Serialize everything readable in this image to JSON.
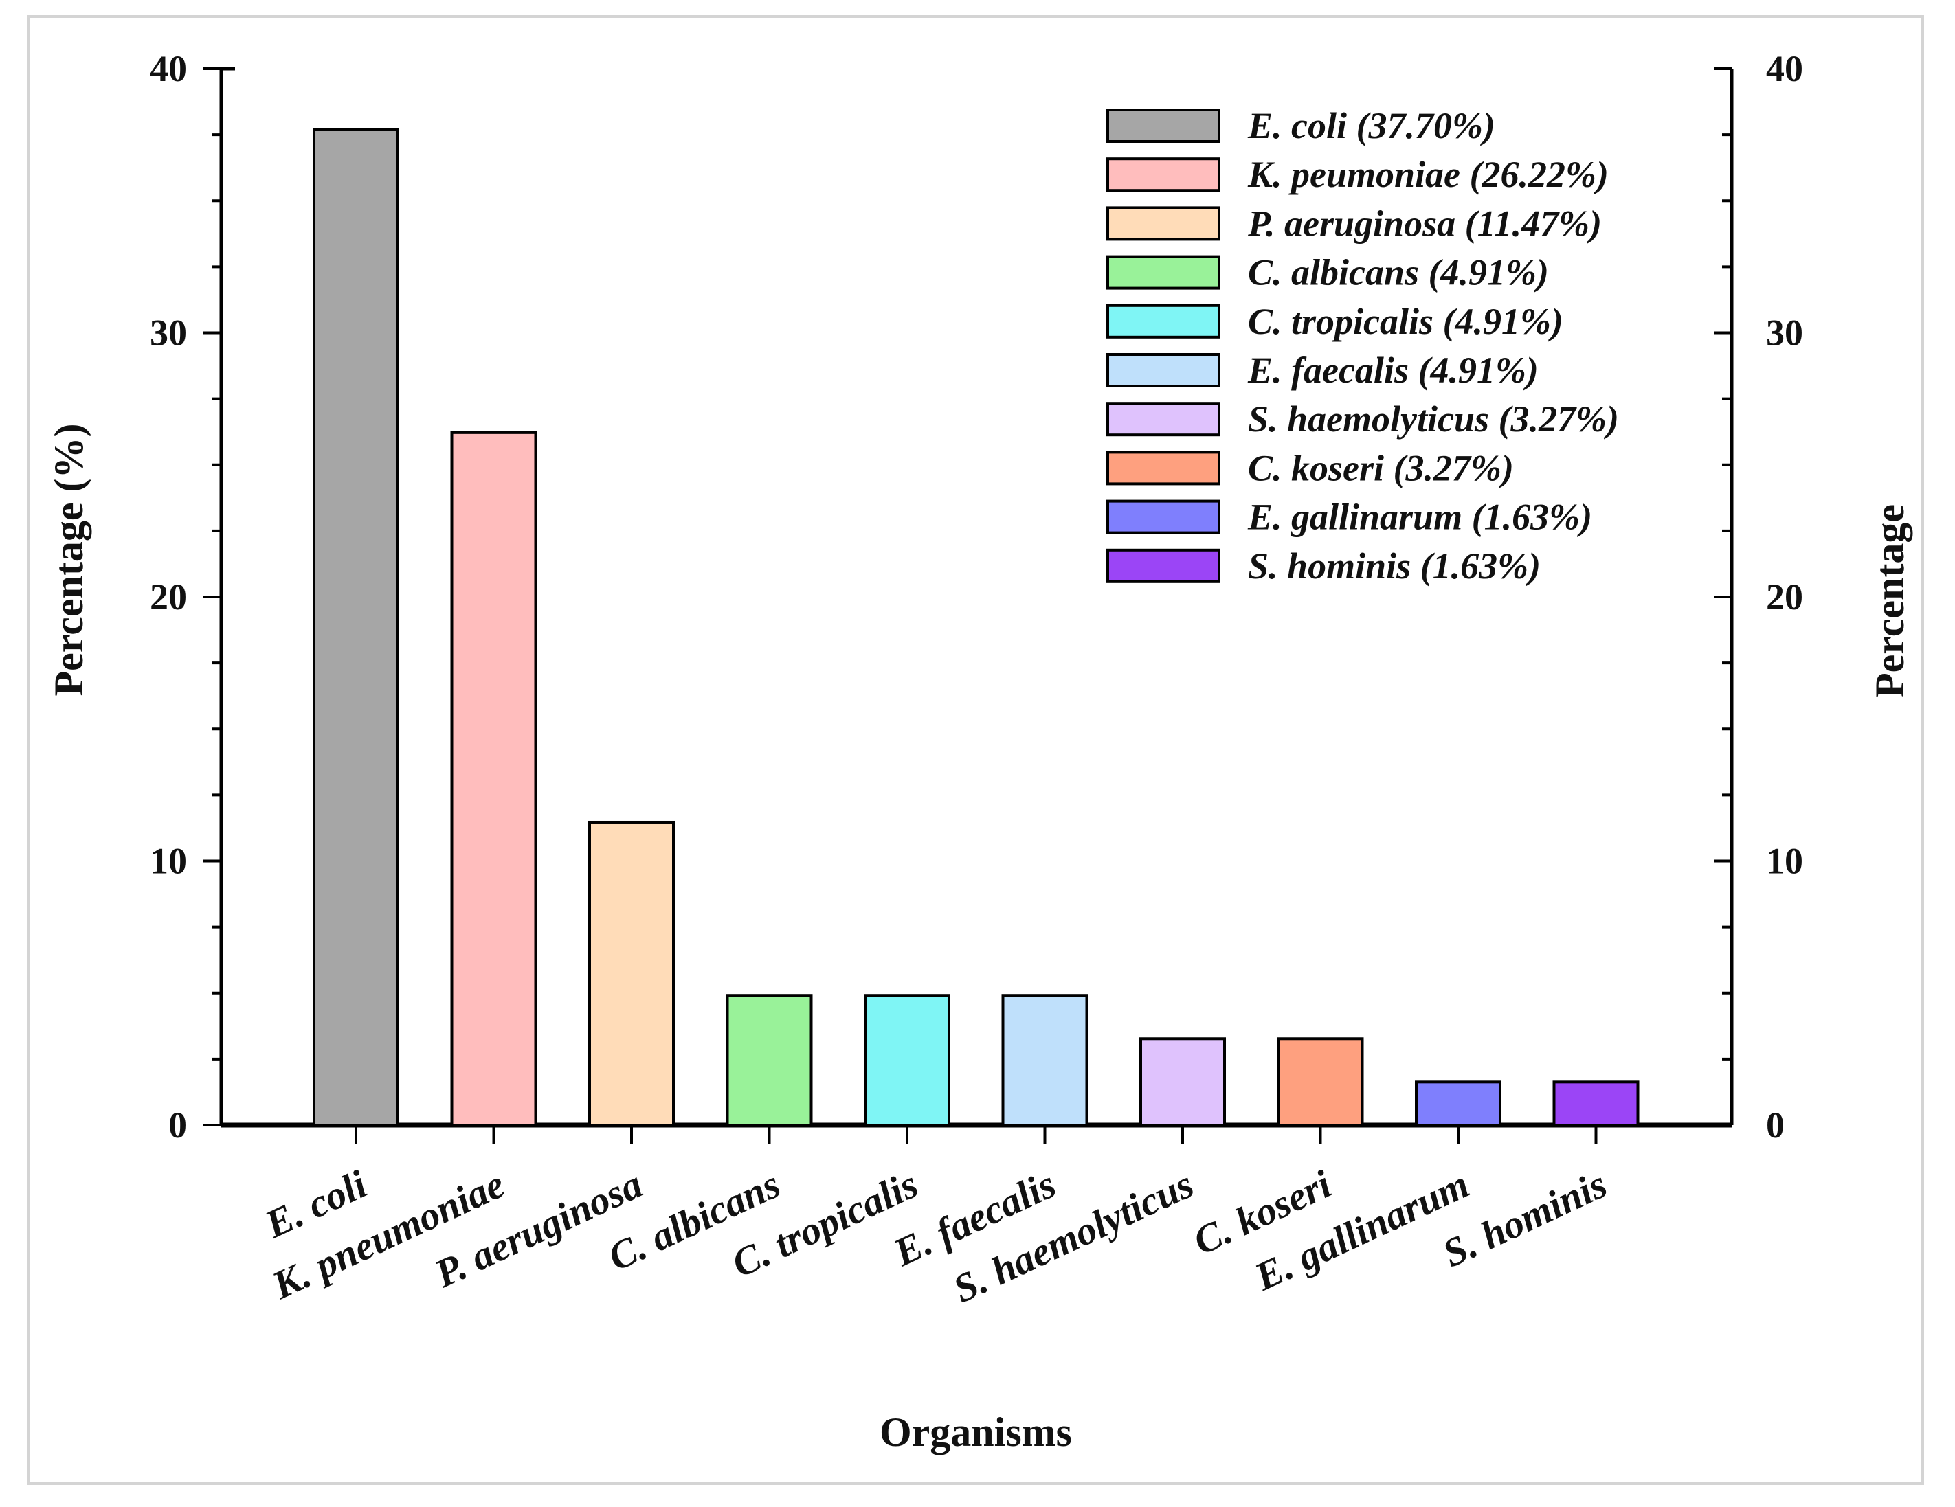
{
  "chart_data": {
    "type": "bar",
    "title": "",
    "xlabel": "Organisms",
    "ylabel": "Percentage (%)",
    "ylabel_right": "Percentage",
    "ylim": [
      0,
      40
    ],
    "yticks": [
      0,
      10,
      20,
      30,
      40
    ],
    "categories": [
      "E. coli",
      "K. pneumoniae",
      "P. aeruginosa",
      "C. albicans",
      "C. tropicalis",
      "E. faecalis",
      "S. haemolyticus",
      "C. koseri",
      "E. gallinarum",
      "S. hominis"
    ],
    "values": [
      37.7,
      26.22,
      11.47,
      4.91,
      4.91,
      4.91,
      3.27,
      3.27,
      1.63,
      1.63
    ],
    "colors": [
      "#a6a6a6",
      "#ffbdbd",
      "#ffdcb8",
      "#99f299",
      "#7ff5f5",
      "#bfe0fb",
      "#dfc2fd",
      "#fea07f",
      "#7f7ffd",
      "#9b45f6"
    ],
    "legend": {
      "position": "top-right",
      "entries": [
        "E. coli (37.70%)",
        "K. peumoniae (26.22%)",
        "P. aeruginosa (11.47%)",
        "C. albicans (4.91%)",
        "C. tropicalis (4.91%)",
        "E. faecalis (4.91%)",
        "S. haemolyticus (3.27%)",
        "C. koseri (3.27%)",
        "E. gallinarum (1.63%)",
        "S. hominis (1.63%)"
      ]
    },
    "grid": false
  }
}
